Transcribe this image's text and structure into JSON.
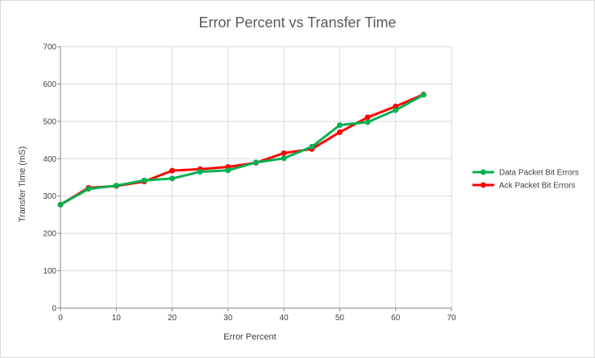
{
  "chart_data": {
    "type": "line",
    "title": "Error Percent vs Transfer Time",
    "xlabel": "Error Percent",
    "ylabel": "Transfer Time (mS)",
    "xlim": [
      0,
      70
    ],
    "ylim": [
      0,
      700
    ],
    "xticks": [
      0,
      10,
      20,
      30,
      40,
      50,
      60,
      70
    ],
    "yticks": [
      0,
      100,
      200,
      300,
      400,
      500,
      600,
      700
    ],
    "grid": true,
    "legend_position": "right",
    "series": [
      {
        "name": "Data Packet Bit Errors",
        "color": "#00b050",
        "x": [
          0,
          5,
          10,
          15,
          20,
          25,
          30,
          35,
          40,
          45,
          50,
          55,
          60,
          65
        ],
        "y": [
          277,
          319,
          328,
          342,
          347,
          365,
          369,
          390,
          401,
          432,
          490,
          498,
          530,
          571
        ]
      },
      {
        "name": "Ack Packet Bit Errors",
        "color": "#ff0000",
        "x": [
          0,
          5,
          10,
          15,
          20,
          25,
          30,
          35,
          40,
          45,
          50,
          55,
          60,
          65
        ],
        "y": [
          277,
          322,
          327,
          339,
          368,
          372,
          378,
          389,
          415,
          426,
          471,
          511,
          540,
          572
        ]
      }
    ]
  }
}
